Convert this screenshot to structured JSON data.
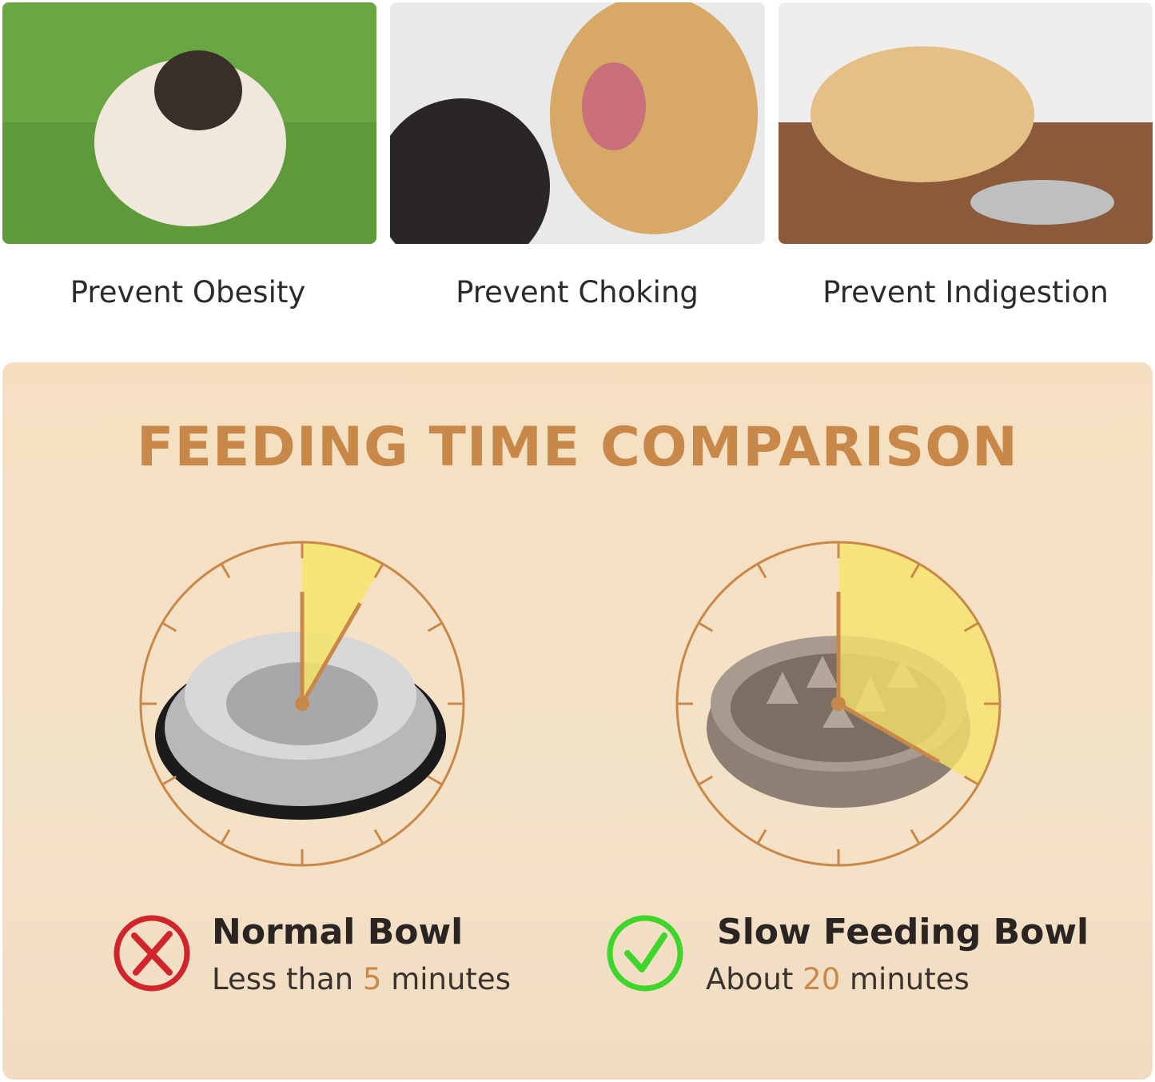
{
  "benefits": [
    {
      "label": "Prevent Obesity",
      "image": "pug on grass"
    },
    {
      "label": "Prevent Choking",
      "image": "golden retriever mouth check"
    },
    {
      "label": "Prevent Indigestion",
      "image": "labrador lying by bowl"
    }
  ],
  "comparison": {
    "title": "FEEDING TIME COMPARISON",
    "normal": {
      "name": "Normal Bowl",
      "prefix": "Less than ",
      "value": "5",
      "suffix": " minutes",
      "minutes": 5,
      "icon": "x-circle-icon",
      "icon_color": "#d0262b"
    },
    "slow": {
      "name": "Slow Feeding Bowl",
      "prefix": "About ",
      "value": "20",
      "suffix": " minutes",
      "minutes": 20,
      "icon": "check-circle-icon",
      "icon_color": "#3fd62b"
    }
  },
  "colors": {
    "accent": "#c8884a",
    "sector": "#f6e46a",
    "panel": "#f5e0c5"
  }
}
